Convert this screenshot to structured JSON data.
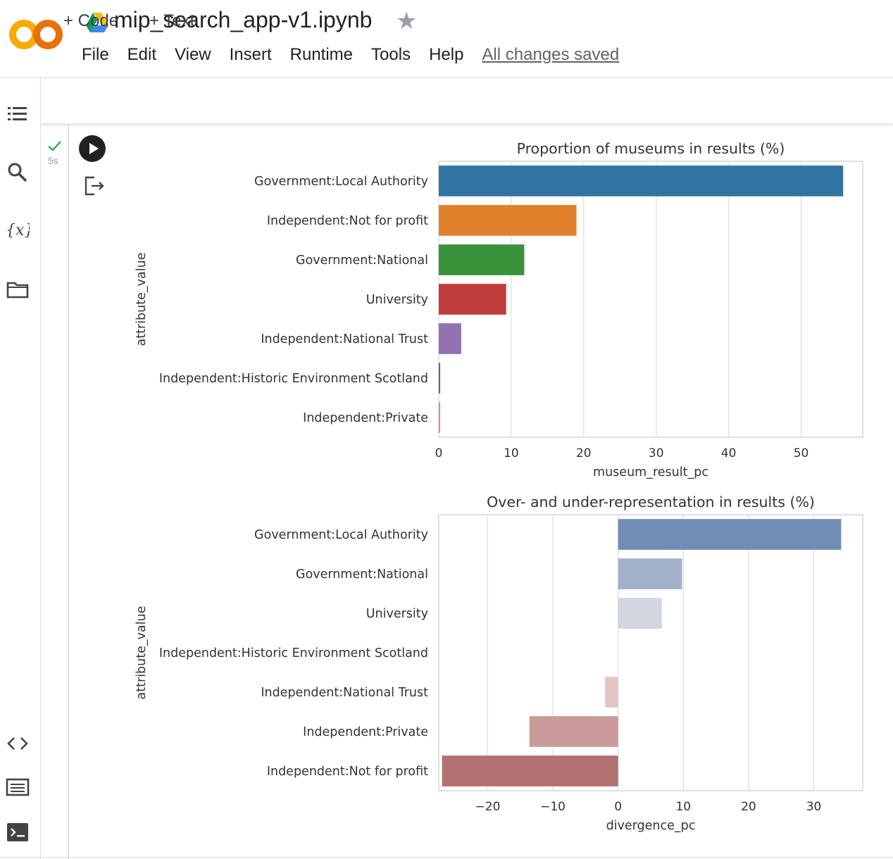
{
  "app": {
    "notebook_title": "mip_search_app-v1.ipynb",
    "menu": [
      "File",
      "Edit",
      "View",
      "Insert",
      "Runtime",
      "Tools",
      "Help"
    ],
    "save_status": "All changes saved"
  },
  "toolbar": {
    "add_code": "+ Code",
    "add_text": "+ Text"
  },
  "sidebar": {
    "icons": [
      "toc-icon",
      "search-icon",
      "variables-icon",
      "files-icon",
      "code-snippets-icon",
      "command-palette-icon",
      "terminal-icon"
    ]
  },
  "cell": {
    "exec_time": "5s",
    "status": "completed"
  },
  "chart_data": [
    {
      "type": "bar",
      "orientation": "horizontal",
      "title": "Proportion of museums in results (%)",
      "xlabel": "museum_result_pc",
      "ylabel": "attribute_value",
      "xlim": [
        0,
        58.5
      ],
      "xticks": [
        0,
        10,
        20,
        30,
        40,
        50
      ],
      "grid": true,
      "categories": [
        "Government:Local Authority",
        "Independent:Not for profit",
        "Government:National",
        "University",
        "Independent:National Trust",
        "Independent:Historic Environment Scotland",
        "Independent:Private"
      ],
      "values": [
        55.8,
        19.0,
        11.8,
        9.3,
        3.1,
        0.2,
        0.2
      ],
      "colors": [
        "#3274a1",
        "#e1812c",
        "#3a923a",
        "#c03d3e",
        "#9372b2",
        "#845b53",
        "#d684bd"
      ]
    },
    {
      "type": "bar",
      "orientation": "horizontal",
      "title": "Over- and under-representation in results (%)",
      "xlabel": "divergence_pc",
      "ylabel": "attribute_value",
      "xlim": [
        -27.5,
        37.5
      ],
      "xticks": [
        -20,
        -10,
        0,
        10,
        20,
        30
      ],
      "xticklabels": [
        "−20",
        "−10",
        "0",
        "10",
        "20",
        "30"
      ],
      "grid": true,
      "categories": [
        "Government:Local Authority",
        "Government:National",
        "University",
        "Independent:Historic Environment Scotland",
        "Independent:National Trust",
        "Independent:Private",
        "Independent:Not for profit"
      ],
      "values": [
        34.2,
        9.8,
        6.7,
        0.0,
        -2.0,
        -13.6,
        -27.0
      ],
      "colors": [
        "#728db6",
        "#a2b1cb",
        "#d3d6e0",
        "#e8e4e5",
        "#e4c5c6",
        "#cb9a9b",
        "#b37070"
      ]
    }
  ]
}
